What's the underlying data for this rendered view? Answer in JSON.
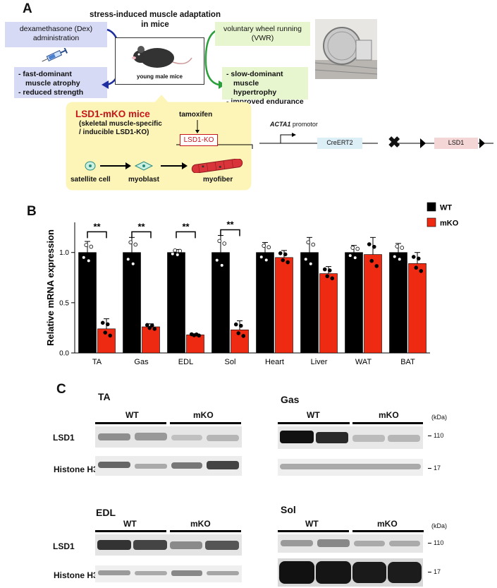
{
  "panelA": {
    "letter": "A",
    "title_line1": "stress-induced muscle adaptation",
    "title_line2": "in mice",
    "dex_line1": "dexamethasone (Dex)",
    "dex_line2": "administration",
    "atrophy_line1": "- fast-dominant",
    "atrophy_line2": "muscle atrophy",
    "atrophy_line3": "- reduced strength",
    "vwr_line1": "voluntary wheel running",
    "vwr_line2": "(VWR)",
    "hyper_line1": "- slow-dominant",
    "hyper_line2": "muscle hypertrophy",
    "hyper_line3": "- improved endurance",
    "mouse_label": "young male mice",
    "lsd1_title": "LSD1-mKO mice",
    "lsd1_sub1": "(skeletal muscle-specific",
    "lsd1_sub2": "/ inducible LSD1-KO)",
    "tamoxifen": "tamoxifen",
    "lsd1ko": "LSD1-KO",
    "satellite": "satellite cell",
    "myoblast": "myoblast",
    "myofiber": "myofiber",
    "acta1": "ACTA1",
    "promotor": " promotor",
    "creert2": "CreERT2",
    "lsd1_gene": "LSD1",
    "colors": {
      "blue_box": "#d6daf5",
      "green_box": "#e8f6cf",
      "yellow_box": "#fdf5b8",
      "red_text": "#c8151b"
    }
  },
  "panelB": {
    "letter": "B",
    "chart_data": {
      "type": "bar",
      "ylabel": "Relative mRNA expression",
      "ylim": [
        0,
        1.3
      ],
      "yticks": [
        "0.0",
        "0.5",
        "1.0"
      ],
      "categories": [
        "TA",
        "Gas",
        "EDL",
        "Sol",
        "Heart",
        "Liver",
        "WAT",
        "BAT"
      ],
      "series": [
        {
          "name": "WT",
          "color": "#000000",
          "values": [
            1.0,
            1.0,
            1.0,
            1.0,
            1.0,
            1.0,
            1.0,
            1.0
          ],
          "errors": [
            0.11,
            0.15,
            0.03,
            0.17,
            0.1,
            0.15,
            0.07,
            0.09
          ]
        },
        {
          "name": "mKO",
          "color": "#ee2a12",
          "values": [
            0.24,
            0.26,
            0.18,
            0.23,
            0.95,
            0.79,
            0.98,
            0.89
          ],
          "errors": [
            0.1,
            0.03,
            0.01,
            0.09,
            0.07,
            0.07,
            0.17,
            0.11
          ]
        }
      ],
      "significance": [
        {
          "category": "TA",
          "label": "**"
        },
        {
          "category": "Gas",
          "label": "**"
        },
        {
          "category": "EDL",
          "label": "**"
        },
        {
          "category": "Sol",
          "label": "**"
        }
      ],
      "legend": [
        "WT",
        "mKO"
      ],
      "legend_position": "top-right"
    }
  },
  "panelC": {
    "letter": "C",
    "blots": [
      {
        "title": "TA",
        "wt": "WT",
        "mko": "mKO",
        "row1": "LSD1",
        "row2": "Histone H3"
      },
      {
        "title": "Gas",
        "wt": "WT",
        "mko": "mKO",
        "kda": "(kDa)",
        "m1": "110",
        "m2": "17"
      },
      {
        "title": "EDL",
        "wt": "WT",
        "mko": "mKO",
        "row1": "LSD1",
        "row2": "Histone H3"
      },
      {
        "title": "Sol",
        "wt": "WT",
        "mko": "mKO",
        "kda": "(kDa)",
        "m1": "110",
        "m2": "17"
      }
    ]
  }
}
